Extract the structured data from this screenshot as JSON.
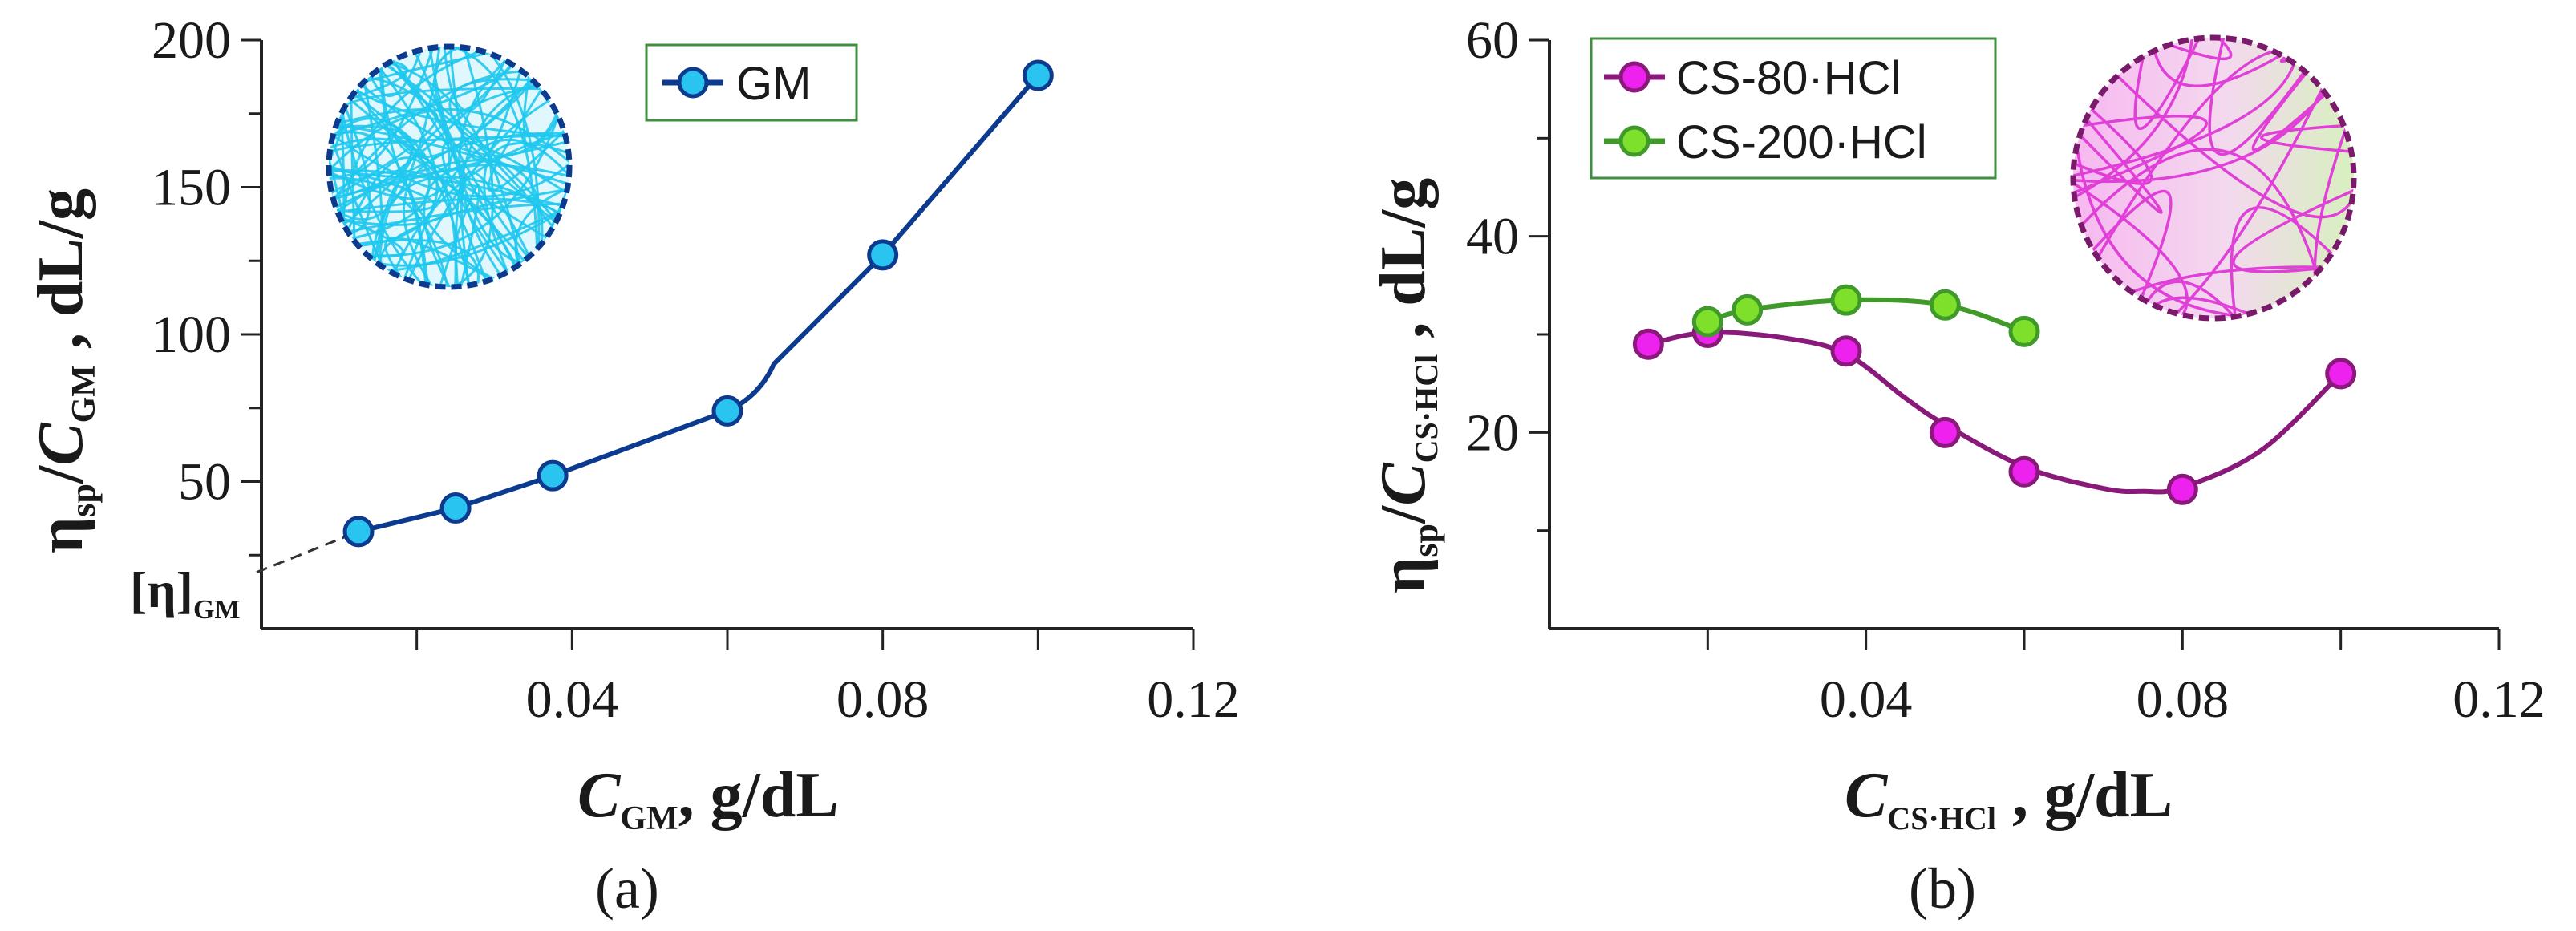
{
  "panels": [
    {
      "id": "a",
      "label": "(a)",
      "color": "#0b3a8f",
      "marker_fill": "#29c4f0",
      "inset_color": "#1fc8ee",
      "inset_border": "#0b3a8f",
      "legend_border": "#3f8f3f",
      "x_title": {
        "italic": "C",
        "sub": "GM",
        "rest": ", g/dL"
      },
      "y_title": {
        "eta": "η",
        "eta_sub": "sp",
        "slash": "/",
        "italic": "C",
        "sub": "GM",
        "rest": " , dL/g"
      },
      "intercept_label": {
        "main": "[η]",
        "sub": "GM"
      },
      "x_ticks": [
        "0.04",
        "0.08",
        "0.12"
      ],
      "y_ticks": [
        "50",
        "100",
        "150",
        "200"
      ]
    },
    {
      "id": "b",
      "label": "(b)",
      "color": "#8a1a7a",
      "inset_border": "#7a1a6a",
      "legend_border": "#3f8f3f",
      "x_title": {
        "italic": "C",
        "sub": "CS·HCl",
        "rest": " , g/dL"
      },
      "y_title": {
        "eta": "η",
        "eta_sub": "sp",
        "slash": "/",
        "italic": "C",
        "sub": "CS·HCl",
        "rest": " , dL/g"
      },
      "x_ticks": [
        "0.04",
        "0.08",
        "0.12"
      ],
      "y_ticks": [
        "20",
        "40",
        "60"
      ]
    }
  ],
  "chart_data": [
    {
      "type": "line",
      "panel": "a",
      "title": "",
      "xlabel": "C_GM, g/dL",
      "ylabel": "ηsp/C_GM , dL/g",
      "xlim": [
        0,
        0.12
      ],
      "ylim": [
        0,
        200
      ],
      "x_ticks": [
        0.04,
        0.08,
        0.12
      ],
      "y_ticks": [
        50,
        100,
        150,
        200
      ],
      "legend_position": "top-center",
      "series": [
        {
          "name": "GM",
          "color": "#0b3a8f",
          "marker_color": "#29c4f0",
          "x": [
            0.0125,
            0.025,
            0.0375,
            0.06,
            0.08,
            0.1
          ],
          "y": [
            33,
            41,
            52,
            74,
            127,
            188
          ]
        }
      ],
      "extrapolation": {
        "style": "dashed",
        "from": [
          0.0125,
          33
        ],
        "to": [
          0,
          20
        ],
        "label": "[η]GM"
      }
    },
    {
      "type": "line",
      "panel": "b",
      "title": "",
      "xlabel": "C_CS·HCl , g/dL",
      "ylabel": "ηsp/C_CS·HCl , dL/g",
      "xlim": [
        0,
        0.12
      ],
      "ylim": [
        0,
        60
      ],
      "x_ticks": [
        0.04,
        0.08,
        0.12
      ],
      "y_ticks": [
        20,
        40,
        60
      ],
      "legend_position": "top-left",
      "series": [
        {
          "name": "CS-80·HCl",
          "color": "#8a1a7a",
          "marker_color": "#ee22ee",
          "x": [
            0.0125,
            0.02,
            0.0375,
            0.05,
            0.06,
            0.08,
            0.1
          ],
          "y": [
            29,
            30.2,
            28.3,
            20,
            16,
            14.2,
            26
          ],
          "fit": {
            "x": [
              0.0125,
              0.02,
              0.03,
              0.0375,
              0.045,
              0.05,
              0.06,
              0.07,
              0.075,
              0.08,
              0.09,
              0.1
            ],
            "y": [
              29,
              30.2,
              29.6,
              28,
              23.5,
              20.8,
              16.5,
              14.3,
              14,
              14.4,
              18.2,
              26
            ]
          }
        },
        {
          "name": "CS-200·HCl",
          "color": "#3f9a2a",
          "marker_color": "#7ee02a",
          "x": [
            0.02,
            0.025,
            0.0375,
            0.05,
            0.06
          ],
          "y": [
            31.3,
            32.5,
            33.5,
            33,
            30.3
          ],
          "fit": {
            "x": [
              0.02,
              0.025,
              0.0375,
              0.05,
              0.06
            ],
            "y": [
              31.3,
              32.5,
              33.5,
              33,
              30.3
            ]
          }
        }
      ]
    }
  ]
}
